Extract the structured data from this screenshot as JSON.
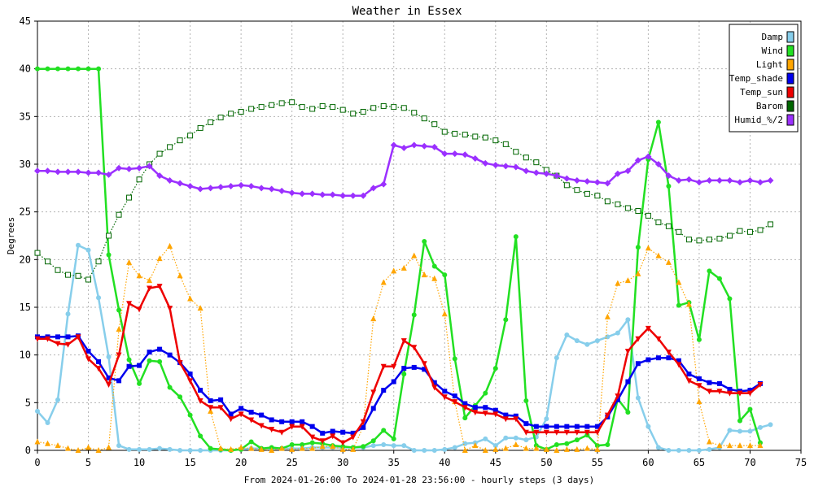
{
  "chart_data": {
    "type": "line",
    "title": "Weather in Essex",
    "xlabel": "From 2024-01-26:00 To 2024-01-28 23:56:00 - hourly steps (3 days)",
    "ylabel": "Degrees",
    "xlim": [
      0,
      75
    ],
    "ylim": [
      0,
      45
    ],
    "xticks": [
      0,
      5,
      10,
      15,
      20,
      25,
      30,
      35,
      40,
      45,
      50,
      55,
      60,
      65,
      70,
      75
    ],
    "yticks": [
      0,
      5,
      10,
      15,
      20,
      25,
      30,
      35,
      40,
      45
    ],
    "grid": true,
    "legend_position": "top-right",
    "series": [
      {
        "name": "Damp",
        "color": "#87ceeb",
        "marker": "circle",
        "line": "solid",
        "values": [
          4.1,
          2.9,
          5.3,
          14.3,
          21.5,
          21.0,
          16.0,
          9.8,
          0.5,
          0.1,
          0.1,
          0.1,
          0.2,
          0.1,
          0.0,
          0.0,
          0.0,
          0.0,
          0.0,
          0.0,
          0.1,
          0.2,
          0.2,
          0.2,
          0.2,
          0.2,
          0.2,
          0.3,
          0.3,
          0.3,
          0.3,
          0.3,
          0.3,
          0.5,
          0.6,
          0.5,
          0.5,
          0.0,
          0.0,
          0.0,
          0.1,
          0.3,
          0.7,
          0.8,
          1.2,
          0.5,
          1.3,
          1.3,
          1.1,
          1.4,
          3.3,
          9.7,
          12.1,
          11.5,
          11.1,
          11.5,
          11.9,
          12.3,
          13.7,
          5.5,
          2.5,
          0.3,
          0.0,
          0.0,
          0.0,
          0.0,
          0.1,
          0.3,
          2.1,
          2.0,
          2.0,
          2.4,
          2.7
        ]
      },
      {
        "name": "Wind",
        "color": "#22e022",
        "marker": "circle",
        "line": "solid",
        "values": [
          40.0,
          40.0,
          40.0,
          40.0,
          40.0,
          40.0,
          40.0,
          20.5,
          14.7,
          9.5,
          7.0,
          9.4,
          9.3,
          6.6,
          5.6,
          3.7,
          1.5,
          0.2,
          0.1,
          0.0,
          0.1,
          0.9,
          0.2,
          0.3,
          0.2,
          0.6,
          0.6,
          0.8,
          0.7,
          0.5,
          0.4,
          0.3,
          0.4,
          1.0,
          2.1,
          1.2,
          8.0,
          14.2,
          21.9,
          19.3,
          18.4,
          9.6,
          3.4,
          4.7,
          6.0,
          8.6,
          13.7,
          22.4,
          5.2,
          0.5,
          0.1,
          0.6,
          0.7,
          1.1,
          1.6,
          0.5,
          0.6,
          5.4,
          4.0,
          21.3,
          30.5,
          34.4,
          27.7,
          15.2,
          15.5,
          11.6,
          18.8,
          18.0,
          15.9,
          3.1,
          4.3,
          0.8
        ]
      },
      {
        "name": "Light",
        "color": "#ffa500",
        "marker": "triangle-up",
        "line": "dotted",
        "values": [
          0.9,
          0.7,
          0.5,
          0.2,
          0.0,
          0.3,
          0.0,
          0.3,
          12.7,
          19.7,
          18.3,
          17.8,
          20.1,
          21.4,
          18.3,
          15.9,
          14.9,
          4.1,
          0.2,
          0.1,
          0.3,
          0.2,
          0.1,
          0.0,
          0.2,
          0.1,
          0.2,
          0.2,
          0.4,
          0.4,
          0.1,
          0.1,
          2.5,
          13.8,
          17.6,
          18.8,
          19.1,
          20.4,
          18.4,
          18.0,
          14.3,
          5.1,
          0.0,
          0.5,
          0.0,
          0.1,
          0.2,
          0.6,
          0.2,
          0.2,
          0.1,
          0.0,
          0.1,
          0.1,
          0.2,
          0.1,
          14.0,
          17.5,
          17.8,
          18.5,
          21.2,
          20.4,
          19.7,
          17.6,
          15.3,
          5.1,
          0.9,
          0.5,
          0.5,
          0.5,
          0.5,
          0.5
        ]
      },
      {
        "name": "Temp_shade",
        "color": "#0000ee",
        "marker": "square",
        "line": "solid",
        "values": [
          11.9,
          11.9,
          11.9,
          11.9,
          12.0,
          10.4,
          9.3,
          7.6,
          7.3,
          8.8,
          8.9,
          10.3,
          10.6,
          10.0,
          9.2,
          8.0,
          6.3,
          5.2,
          5.3,
          3.8,
          4.4,
          4.0,
          3.7,
          3.2,
          3.0,
          3.0,
          3.0,
          2.5,
          1.8,
          2.0,
          1.9,
          1.8,
          2.4,
          4.4,
          6.3,
          7.2,
          8.6,
          8.7,
          8.5,
          7.1,
          6.2,
          5.7,
          4.9,
          4.5,
          4.5,
          4.2,
          3.7,
          3.6,
          2.8,
          2.5,
          2.5,
          2.5,
          2.5,
          2.5,
          2.5,
          2.5,
          3.5,
          5.3,
          7.2,
          9.1,
          9.5,
          9.7,
          9.7,
          9.4,
          8.0,
          7.5,
          7.1,
          7.0,
          6.4,
          6.2,
          6.3,
          7.0
        ]
      },
      {
        "name": "Temp_sun",
        "color": "#ee0000",
        "marker": "triangle-down",
        "line": "solid",
        "values": [
          11.7,
          11.7,
          11.2,
          11.1,
          11.9,
          9.6,
          8.6,
          6.9,
          10.0,
          15.4,
          14.8,
          17.0,
          17.2,
          14.9,
          9.2,
          7.3,
          5.2,
          4.5,
          4.5,
          3.3,
          3.8,
          3.2,
          2.6,
          2.2,
          1.9,
          2.5,
          2.5,
          1.4,
          1.0,
          1.5,
          0.8,
          1.4,
          3.0,
          6.1,
          8.8,
          8.8,
          11.5,
          10.8,
          9.1,
          6.6,
          5.6,
          5.1,
          4.5,
          4.0,
          3.9,
          3.8,
          3.3,
          3.3,
          1.9,
          1.9,
          1.9,
          1.9,
          1.9,
          1.9,
          1.9,
          1.9,
          3.7,
          5.7,
          10.4,
          11.7,
          12.8,
          11.7,
          10.3,
          9.0,
          7.3,
          6.8,
          6.2,
          6.2,
          6.0,
          6.0,
          6.0,
          6.9
        ]
      },
      {
        "name": "Barom",
        "color": "#006600",
        "marker": "square-open",
        "line": "dotted",
        "values": [
          20.7,
          19.8,
          18.9,
          18.4,
          18.3,
          17.9,
          19.8,
          22.5,
          24.7,
          26.5,
          28.4,
          30.0,
          31.1,
          31.8,
          32.5,
          33.0,
          33.8,
          34.4,
          34.9,
          35.3,
          35.5,
          35.8,
          36.0,
          36.2,
          36.4,
          36.5,
          36.0,
          35.8,
          36.1,
          36.0,
          35.7,
          35.3,
          35.5,
          35.9,
          36.1,
          36.0,
          35.9,
          35.4,
          34.8,
          34.2,
          33.4,
          33.2,
          33.1,
          32.9,
          32.8,
          32.5,
          32.1,
          31.3,
          30.7,
          30.2,
          29.4,
          28.8,
          27.8,
          27.3,
          26.9,
          26.7,
          26.1,
          25.8,
          25.4,
          25.1,
          24.6,
          23.9,
          23.5,
          22.9,
          22.1,
          22.0,
          22.1,
          22.2,
          22.5,
          23.0,
          22.9,
          23.1,
          23.7
        ]
      },
      {
        "name": "Humid_%/2",
        "color": "#9b30ff",
        "marker": "diamond",
        "line": "solid",
        "values": [
          29.3,
          29.3,
          29.2,
          29.2,
          29.2,
          29.1,
          29.1,
          28.9,
          29.6,
          29.5,
          29.6,
          29.8,
          28.8,
          28.3,
          28.0,
          27.7,
          27.4,
          27.5,
          27.6,
          27.7,
          27.8,
          27.7,
          27.5,
          27.4,
          27.2,
          27.0,
          26.9,
          26.9,
          26.8,
          26.8,
          26.7,
          26.7,
          26.7,
          27.5,
          27.9,
          32.0,
          31.7,
          32.0,
          31.9,
          31.8,
          31.1,
          31.1,
          31.0,
          30.6,
          30.1,
          29.9,
          29.8,
          29.7,
          29.3,
          29.1,
          29.0,
          28.8,
          28.5,
          28.3,
          28.2,
          28.1,
          28.0,
          29.0,
          29.3,
          30.4,
          30.8,
          30.0,
          28.8,
          28.3,
          28.4,
          28.1,
          28.3,
          28.3,
          28.3,
          28.1,
          28.3,
          28.1,
          28.3
        ]
      }
    ]
  }
}
